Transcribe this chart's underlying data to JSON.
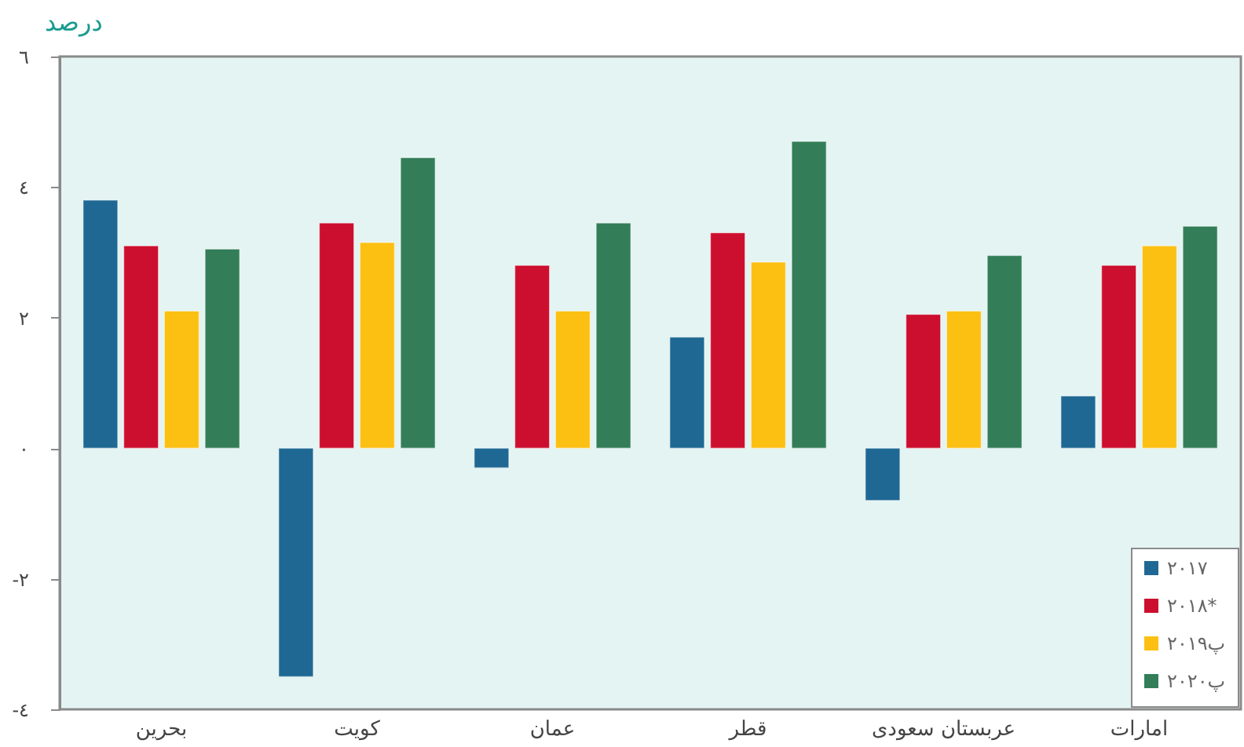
{
  "chart_data": {
    "type": "bar",
    "ylabel": "درصد",
    "categories": [
      "بحرین",
      "کویت",
      "عمان",
      "قطر",
      "عربستان سعودی",
      "امارات"
    ],
    "series": [
      {
        "name": "۲۰۱۷",
        "color": "#1f6893",
        "values": [
          3.8,
          -3.5,
          -0.3,
          1.7,
          -0.8,
          0.8
        ]
      },
      {
        "name": "۲۰۱۸*",
        "color": "#cc0f2e",
        "values": [
          3.1,
          3.45,
          2.8,
          3.3,
          2.05,
          2.8
        ]
      },
      {
        "name": "۲۰۱۹پ",
        "color": "#fcc013",
        "values": [
          2.1,
          3.15,
          2.1,
          2.85,
          2.1,
          3.1
        ]
      },
      {
        "name": "۲۰۲۰پ",
        "color": "#337e58",
        "values": [
          3.05,
          4.45,
          3.45,
          4.7,
          2.95,
          3.4
        ]
      }
    ],
    "ylim": [
      -4,
      6
    ],
    "yticks": [
      {
        "value": -4,
        "label": "-٤"
      },
      {
        "value": -2,
        "label": "-٢"
      },
      {
        "value": 0,
        "label": "٠"
      },
      {
        "value": 2,
        "label": "٢"
      },
      {
        "value": 4,
        "label": "٤"
      },
      {
        "value": 6,
        "label": "٦"
      }
    ],
    "grid": false,
    "legend": "bottom right"
  }
}
